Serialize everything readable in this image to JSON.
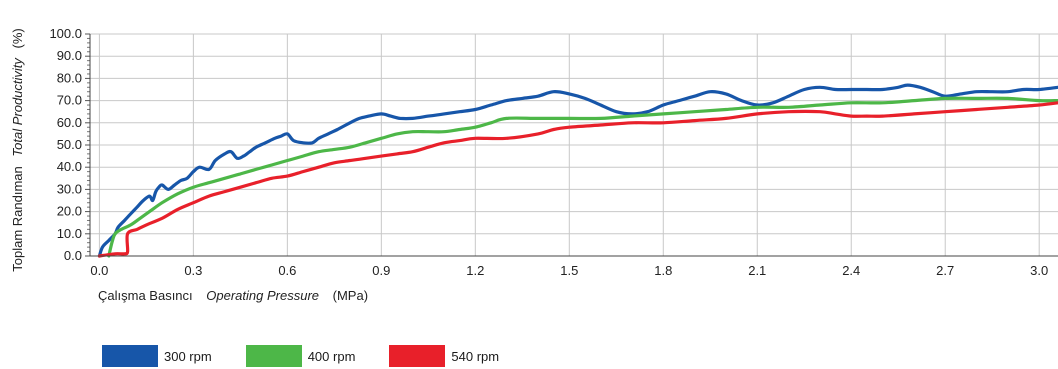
{
  "chart_data": {
    "type": "line",
    "ylabel_tr": "Toplam Randıman",
    "ylabel_en": "Total Productivity",
    "ylabel_unit": "(%)",
    "xlabel_tr": "Çalışma Basıncı",
    "xlabel_en": "Operating Pressure",
    "xlabel_unit": "(MPa)",
    "xlim": [
      -0.03,
      3.06
    ],
    "ylim": [
      0,
      100
    ],
    "x_ticks": [
      "0.0",
      "0.3",
      "0.6",
      "0.9",
      "1.2",
      "1.5",
      "1.8",
      "2.1",
      "2.4",
      "2.7",
      "3.0"
    ],
    "y_ticks": [
      "0.0",
      "10.0",
      "20.0",
      "30.0",
      "40.0",
      "50.0",
      "60.0",
      "70.0",
      "80.0",
      "90.0",
      "100.0"
    ],
    "grid": true,
    "legend_position": "bottom-left",
    "series": [
      {
        "name": "300 rpm",
        "color": "#1756a9",
        "points": [
          [
            0,
            0
          ],
          [
            0.01,
            4
          ],
          [
            0.03,
            7
          ],
          [
            0.05,
            10
          ],
          [
            0.06,
            13
          ],
          [
            0.08,
            16
          ],
          [
            0.1,
            19
          ],
          [
            0.12,
            22
          ],
          [
            0.14,
            25
          ],
          [
            0.16,
            27
          ],
          [
            0.17,
            25
          ],
          [
            0.18,
            29
          ],
          [
            0.19,
            31
          ],
          [
            0.2,
            32
          ],
          [
            0.22,
            30
          ],
          [
            0.24,
            32
          ],
          [
            0.26,
            34
          ],
          [
            0.28,
            35
          ],
          [
            0.3,
            38
          ],
          [
            0.32,
            40
          ],
          [
            0.35,
            39
          ],
          [
            0.37,
            43
          ],
          [
            0.4,
            46
          ],
          [
            0.42,
            47
          ],
          [
            0.44,
            44
          ],
          [
            0.46,
            45
          ],
          [
            0.48,
            47
          ],
          [
            0.5,
            49
          ],
          [
            0.53,
            51
          ],
          [
            0.56,
            53
          ],
          [
            0.58,
            54
          ],
          [
            0.6,
            55
          ],
          [
            0.62,
            52
          ],
          [
            0.65,
            51
          ],
          [
            0.68,
            51
          ],
          [
            0.7,
            53
          ],
          [
            0.73,
            55
          ],
          [
            0.76,
            57
          ],
          [
            0.8,
            60
          ],
          [
            0.83,
            62
          ],
          [
            0.86,
            63
          ],
          [
            0.9,
            64
          ],
          [
            0.93,
            63
          ],
          [
            0.96,
            62
          ],
          [
            1.0,
            62
          ],
          [
            1.05,
            63
          ],
          [
            1.1,
            64
          ],
          [
            1.15,
            65
          ],
          [
            1.2,
            66
          ],
          [
            1.25,
            68
          ],
          [
            1.3,
            70
          ],
          [
            1.35,
            71
          ],
          [
            1.4,
            72
          ],
          [
            1.45,
            74
          ],
          [
            1.5,
            73
          ],
          [
            1.55,
            71
          ],
          [
            1.6,
            68
          ],
          [
            1.65,
            65
          ],
          [
            1.7,
            64
          ],
          [
            1.75,
            65
          ],
          [
            1.8,
            68
          ],
          [
            1.85,
            70
          ],
          [
            1.9,
            72
          ],
          [
            1.95,
            74
          ],
          [
            2.0,
            73
          ],
          [
            2.05,
            70
          ],
          [
            2.1,
            68
          ],
          [
            2.15,
            69
          ],
          [
            2.2,
            72
          ],
          [
            2.25,
            75
          ],
          [
            2.3,
            76
          ],
          [
            2.35,
            75
          ],
          [
            2.4,
            75
          ],
          [
            2.45,
            75
          ],
          [
            2.5,
            75
          ],
          [
            2.55,
            76
          ],
          [
            2.58,
            77
          ],
          [
            2.62,
            76
          ],
          [
            2.66,
            74
          ],
          [
            2.7,
            72
          ],
          [
            2.75,
            73
          ],
          [
            2.8,
            74
          ],
          [
            2.85,
            74
          ],
          [
            2.9,
            74
          ],
          [
            2.95,
            75
          ],
          [
            3.0,
            75
          ],
          [
            3.06,
            76
          ]
        ]
      },
      {
        "name": "400 rpm",
        "color": "#4db748",
        "points": [
          [
            0.03,
            0
          ],
          [
            0.04,
            6
          ],
          [
            0.05,
            10
          ],
          [
            0.07,
            12
          ],
          [
            0.1,
            14
          ],
          [
            0.13,
            17
          ],
          [
            0.16,
            20
          ],
          [
            0.2,
            24
          ],
          [
            0.25,
            28
          ],
          [
            0.3,
            31
          ],
          [
            0.35,
            33
          ],
          [
            0.4,
            35
          ],
          [
            0.45,
            37
          ],
          [
            0.5,
            39
          ],
          [
            0.55,
            41
          ],
          [
            0.6,
            43
          ],
          [
            0.65,
            45
          ],
          [
            0.7,
            47
          ],
          [
            0.75,
            48
          ],
          [
            0.8,
            49
          ],
          [
            0.85,
            51
          ],
          [
            0.9,
            53
          ],
          [
            0.95,
            55
          ],
          [
            1.0,
            56
          ],
          [
            1.05,
            56
          ],
          [
            1.1,
            56
          ],
          [
            1.15,
            57
          ],
          [
            1.2,
            58
          ],
          [
            1.25,
            60
          ],
          [
            1.3,
            62
          ],
          [
            1.4,
            62
          ],
          [
            1.5,
            62
          ],
          [
            1.6,
            62
          ],
          [
            1.7,
            63
          ],
          [
            1.8,
            64
          ],
          [
            1.9,
            65
          ],
          [
            2.0,
            66
          ],
          [
            2.1,
            67
          ],
          [
            2.2,
            67
          ],
          [
            2.3,
            68
          ],
          [
            2.4,
            69
          ],
          [
            2.5,
            69
          ],
          [
            2.6,
            70
          ],
          [
            2.7,
            71
          ],
          [
            2.8,
            71
          ],
          [
            2.9,
            71
          ],
          [
            3.0,
            70
          ],
          [
            3.06,
            70
          ]
        ]
      },
      {
        "name": "540 rpm",
        "color": "#e8202a",
        "points": [
          [
            0.0,
            0
          ],
          [
            0.05,
            1
          ],
          [
            0.08,
            1
          ],
          [
            0.09,
            2
          ],
          [
            0.09,
            10
          ],
          [
            0.12,
            12
          ],
          [
            0.15,
            14
          ],
          [
            0.2,
            17
          ],
          [
            0.25,
            21
          ],
          [
            0.3,
            24
          ],
          [
            0.35,
            27
          ],
          [
            0.4,
            29
          ],
          [
            0.45,
            31
          ],
          [
            0.5,
            33
          ],
          [
            0.55,
            35
          ],
          [
            0.6,
            36
          ],
          [
            0.65,
            38
          ],
          [
            0.7,
            40
          ],
          [
            0.75,
            42
          ],
          [
            0.8,
            43
          ],
          [
            0.85,
            44
          ],
          [
            0.9,
            45
          ],
          [
            0.95,
            46
          ],
          [
            1.0,
            47
          ],
          [
            1.05,
            49
          ],
          [
            1.1,
            51
          ],
          [
            1.15,
            52
          ],
          [
            1.2,
            53
          ],
          [
            1.3,
            53
          ],
          [
            1.4,
            55
          ],
          [
            1.45,
            57
          ],
          [
            1.5,
            58
          ],
          [
            1.6,
            59
          ],
          [
            1.7,
            60
          ],
          [
            1.8,
            60
          ],
          [
            1.9,
            61
          ],
          [
            2.0,
            62
          ],
          [
            2.1,
            64
          ],
          [
            2.2,
            65
          ],
          [
            2.3,
            65
          ],
          [
            2.35,
            64
          ],
          [
            2.4,
            63
          ],
          [
            2.45,
            63
          ],
          [
            2.5,
            63
          ],
          [
            2.6,
            64
          ],
          [
            2.7,
            65
          ],
          [
            2.8,
            66
          ],
          [
            2.9,
            67
          ],
          [
            3.0,
            68
          ],
          [
            3.06,
            69
          ]
        ]
      }
    ]
  }
}
